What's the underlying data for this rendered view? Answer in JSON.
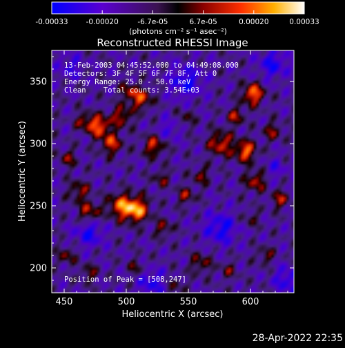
{
  "chart_data": {
    "type": "heatmap",
    "title": "Reconstructed RHESSI Image",
    "xlabel": "Heliocentric X (arcsec)",
    "ylabel": "Heliocentric Y (arcsec)",
    "xlim": [
      440,
      635
    ],
    "ylim": [
      180,
      375
    ],
    "x_ticks": [
      450,
      500,
      550,
      600
    ],
    "y_ticks": [
      200,
      250,
      300,
      350
    ],
    "colorbar": {
      "range": [
        -0.00033,
        0.00033
      ],
      "tick_labels": [
        "-0.00033",
        "-0.00020",
        "-6.7e-05",
        "6.7e-05",
        "0.00020",
        "0.00033"
      ],
      "units": "(photons cm⁻² s⁻¹ asec⁻²)"
    },
    "annotations": {
      "time_range": "13-Feb-2003 04:45:52.000 to 04:49:08.000",
      "detectors": "Detectors: 3F 4F 5F 6F 7F 8F, Att 0",
      "energy": "Energy Range: 25.0 - 50.0 keV",
      "clean": "Clean    Total counts: 3.54E+03",
      "peak": "Position of Peak = [508,247]"
    },
    "blobs": [
      {
        "x": 508,
        "y": 247,
        "v": 1.0,
        "s": 7
      },
      {
        "x": 495,
        "y": 250,
        "v": 0.75,
        "s": 7
      },
      {
        "x": 470,
        "y": 245,
        "v": 0.6,
        "s": 6
      },
      {
        "x": 462,
        "y": 262,
        "v": 0.5,
        "s": 6
      },
      {
        "x": 488,
        "y": 300,
        "v": 0.7,
        "s": 6
      },
      {
        "x": 478,
        "y": 314,
        "v": 0.85,
        "s": 6
      },
      {
        "x": 496,
        "y": 322,
        "v": 0.6,
        "s": 6
      },
      {
        "x": 512,
        "y": 336,
        "v": 0.7,
        "s": 6
      },
      {
        "x": 502,
        "y": 342,
        "v": 0.5,
        "s": 5
      },
      {
        "x": 522,
        "y": 298,
        "v": 0.65,
        "s": 6
      },
      {
        "x": 453,
        "y": 288,
        "v": 0.45,
        "s": 5
      },
      {
        "x": 466,
        "y": 318,
        "v": 0.5,
        "s": 5
      },
      {
        "x": 576,
        "y": 300,
        "v": 0.7,
        "s": 7
      },
      {
        "x": 596,
        "y": 294,
        "v": 0.85,
        "s": 6
      },
      {
        "x": 602,
        "y": 340,
        "v": 0.9,
        "s": 6
      },
      {
        "x": 588,
        "y": 322,
        "v": 0.55,
        "s": 5
      },
      {
        "x": 618,
        "y": 310,
        "v": 0.5,
        "s": 5
      },
      {
        "x": 604,
        "y": 270,
        "v": 0.6,
        "s": 6
      },
      {
        "x": 624,
        "y": 255,
        "v": 0.55,
        "s": 5
      },
      {
        "x": 560,
        "y": 274,
        "v": 0.45,
        "s": 5
      },
      {
        "x": 548,
        "y": 258,
        "v": 0.5,
        "s": 5
      },
      {
        "x": 528,
        "y": 272,
        "v": 0.4,
        "s": 5
      },
      {
        "x": 530,
        "y": 232,
        "v": 0.45,
        "s": 5
      },
      {
        "x": 548,
        "y": 320,
        "v": 0.35,
        "s": 5
      },
      {
        "x": 452,
        "y": 210,
        "v": 0.45,
        "s": 5
      },
      {
        "x": 470,
        "y": 196,
        "v": 0.4,
        "s": 5
      },
      {
        "x": 508,
        "y": 200,
        "v": 0.35,
        "s": 5
      },
      {
        "x": 540,
        "y": 186,
        "v": 0.3,
        "s": 5
      },
      {
        "x": 560,
        "y": 204,
        "v": 0.45,
        "s": 6
      },
      {
        "x": 582,
        "y": 198,
        "v": 0.35,
        "s": 5
      },
      {
        "x": 612,
        "y": 210,
        "v": 0.4,
        "s": 5
      },
      {
        "x": 600,
        "y": 240,
        "v": 0.3,
        "s": 5
      },
      {
        "x": 576,
        "y": 232,
        "v": -0.55,
        "s": 9
      },
      {
        "x": 470,
        "y": 228,
        "v": -0.5,
        "s": 8
      },
      {
        "x": 548,
        "y": 350,
        "v": -0.55,
        "s": 9
      },
      {
        "x": 618,
        "y": 364,
        "v": -0.5,
        "s": 8
      },
      {
        "x": 520,
        "y": 188,
        "v": -0.45,
        "s": 8
      },
      {
        "x": 630,
        "y": 190,
        "v": -0.45,
        "s": 8
      },
      {
        "x": 455,
        "y": 362,
        "v": -0.35,
        "s": 7
      },
      {
        "x": 620,
        "y": 280,
        "v": -0.3,
        "s": 6
      },
      {
        "x": 535,
        "y": 312,
        "v": -0.35,
        "s": 6
      }
    ]
  },
  "footer": {
    "timestamp": "28-Apr-2022 22:35"
  }
}
